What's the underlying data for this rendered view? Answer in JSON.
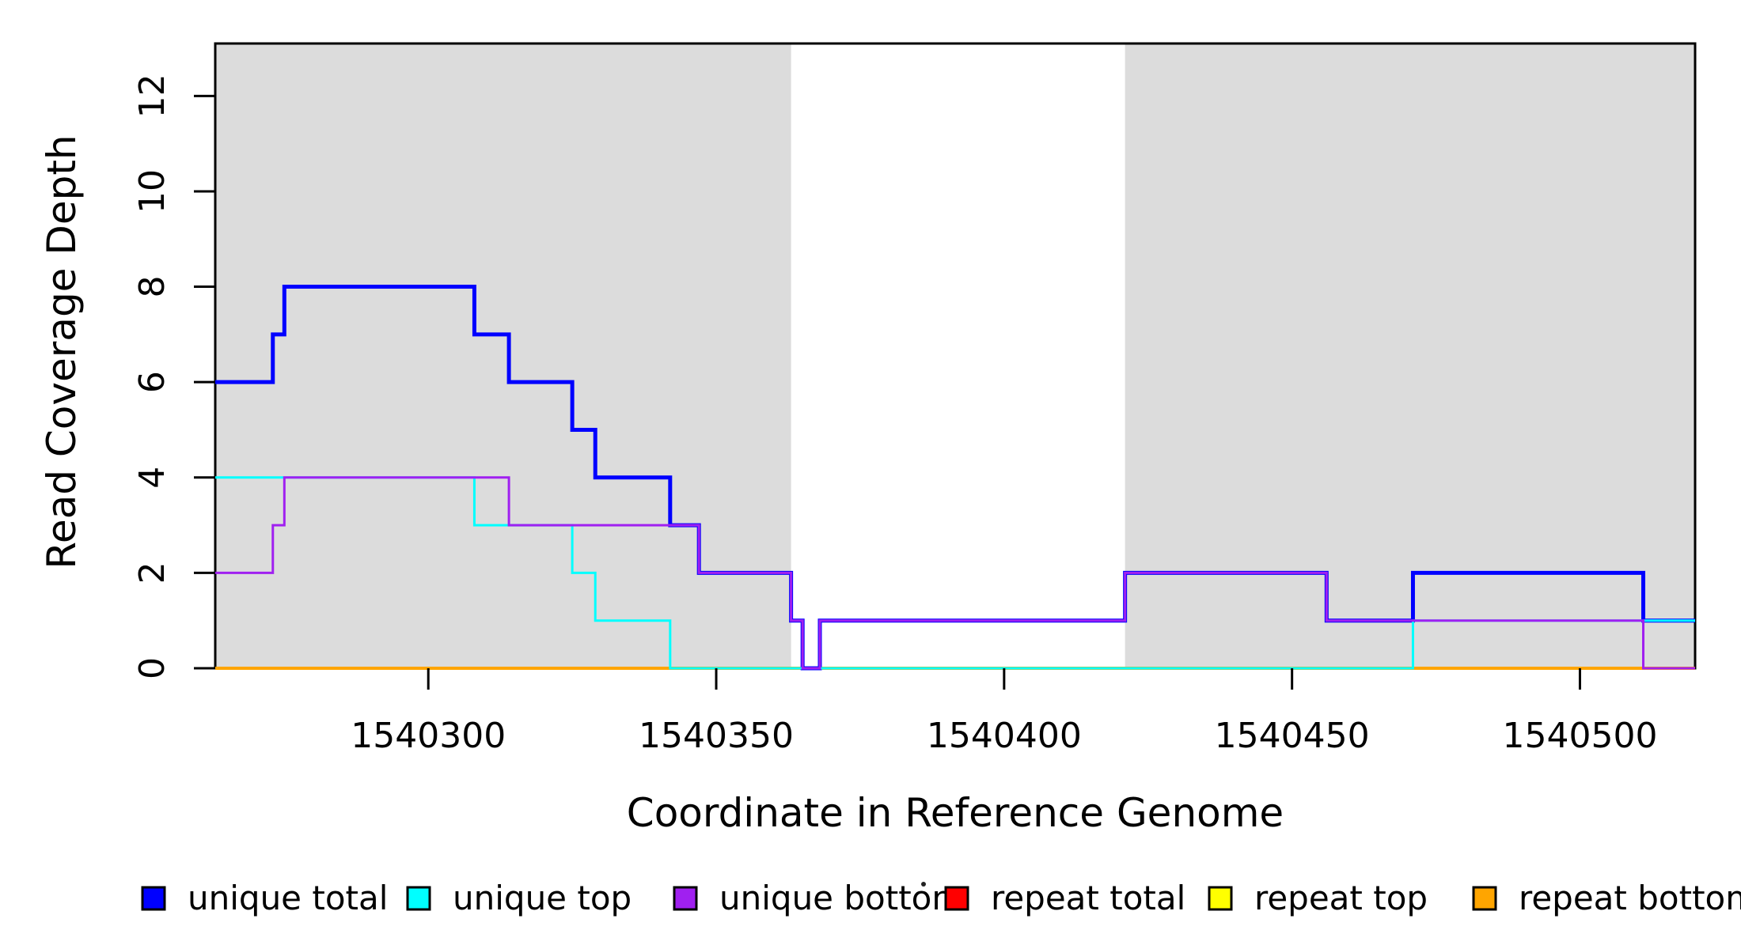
{
  "figure": {
    "background": "#FFFFFF",
    "x_axis": {
      "label": "Coordinate in Reference Genome",
      "ticks": [
        1540300,
        1540350,
        1540400,
        1540450,
        1540500
      ]
    },
    "y_axis": {
      "label": "Read Coverage Depth",
      "ticks": [
        0,
        2,
        4,
        6,
        8,
        10,
        12
      ]
    },
    "legend": [
      {
        "label": "unique total",
        "color": "#0000FF"
      },
      {
        "label": "unique top",
        "color": "#00FFFF"
      },
      {
        "label": "unique bottom",
        "color": "#A020F0"
      },
      {
        "label": "repeat total",
        "color": "#FF0000"
      },
      {
        "label": "repeat top",
        "color": "#FFFF00"
      },
      {
        "label": "repeat bottom",
        "color": "#FFA500"
      }
    ]
  },
  "chart_data": {
    "type": "line",
    "subtype": "step",
    "title": "",
    "xlabel": "Coordinate in Reference Genome",
    "ylabel": "Read Coverage Depth",
    "xlim": [
      1540263,
      1540520
    ],
    "ylim": [
      0,
      13.1
    ],
    "x_ticks": [
      1540300,
      1540350,
      1540400,
      1540450,
      1540500
    ],
    "y_ticks": [
      0,
      2,
      4,
      6,
      8,
      10,
      12
    ],
    "grid": false,
    "legend_position": "bottom",
    "box_color": "#000000",
    "shaded_regions": [
      {
        "x0": 1540263,
        "x1": 1540363,
        "color": "#DCDCDC"
      },
      {
        "x0": 1540421,
        "x1": 1540520,
        "color": "#DCDCDC"
      }
    ],
    "series": [
      {
        "name": "repeat total",
        "color": "#FF0000",
        "width": 3,
        "points": [
          [
            1540263,
            0
          ]
        ]
      },
      {
        "name": "repeat top",
        "color": "#FFFF00",
        "width": 3,
        "points": [
          [
            1540263,
            0
          ]
        ]
      },
      {
        "name": "repeat bottom",
        "color": "#FFA500",
        "width": 4,
        "points": [
          [
            1540263,
            0
          ]
        ]
      },
      {
        "name": "unique total",
        "color": "#0000FF",
        "width": 5,
        "points": [
          [
            1540263,
            6
          ],
          [
            1540273,
            7
          ],
          [
            1540275,
            8
          ],
          [
            1540308,
            7
          ],
          [
            1540314,
            6
          ],
          [
            1540325,
            5
          ],
          [
            1540329,
            4
          ],
          [
            1540342,
            3
          ],
          [
            1540347,
            2
          ],
          [
            1540363,
            1
          ],
          [
            1540365,
            0
          ],
          [
            1540368,
            1
          ],
          [
            1540421,
            2
          ],
          [
            1540456,
            1
          ],
          [
            1540471,
            2
          ],
          [
            1540511,
            1
          ]
        ]
      },
      {
        "name": "unique top",
        "color": "#00FFFF",
        "width": 3,
        "points": [
          [
            1540263,
            4
          ],
          [
            1540308,
            3
          ],
          [
            1540325,
            2
          ],
          [
            1540329,
            1
          ],
          [
            1540342,
            0
          ],
          [
            1540471,
            1
          ]
        ]
      },
      {
        "name": "unique bottom",
        "color": "#A020F0",
        "width": 3,
        "points": [
          [
            1540263,
            2
          ],
          [
            1540273,
            3
          ],
          [
            1540275,
            4
          ],
          [
            1540314,
            3
          ],
          [
            1540347,
            2
          ],
          [
            1540363,
            1
          ],
          [
            1540365,
            0
          ],
          [
            1540368,
            1
          ],
          [
            1540421,
            2
          ],
          [
            1540456,
            1
          ],
          [
            1540511,
            0
          ]
        ]
      }
    ]
  }
}
